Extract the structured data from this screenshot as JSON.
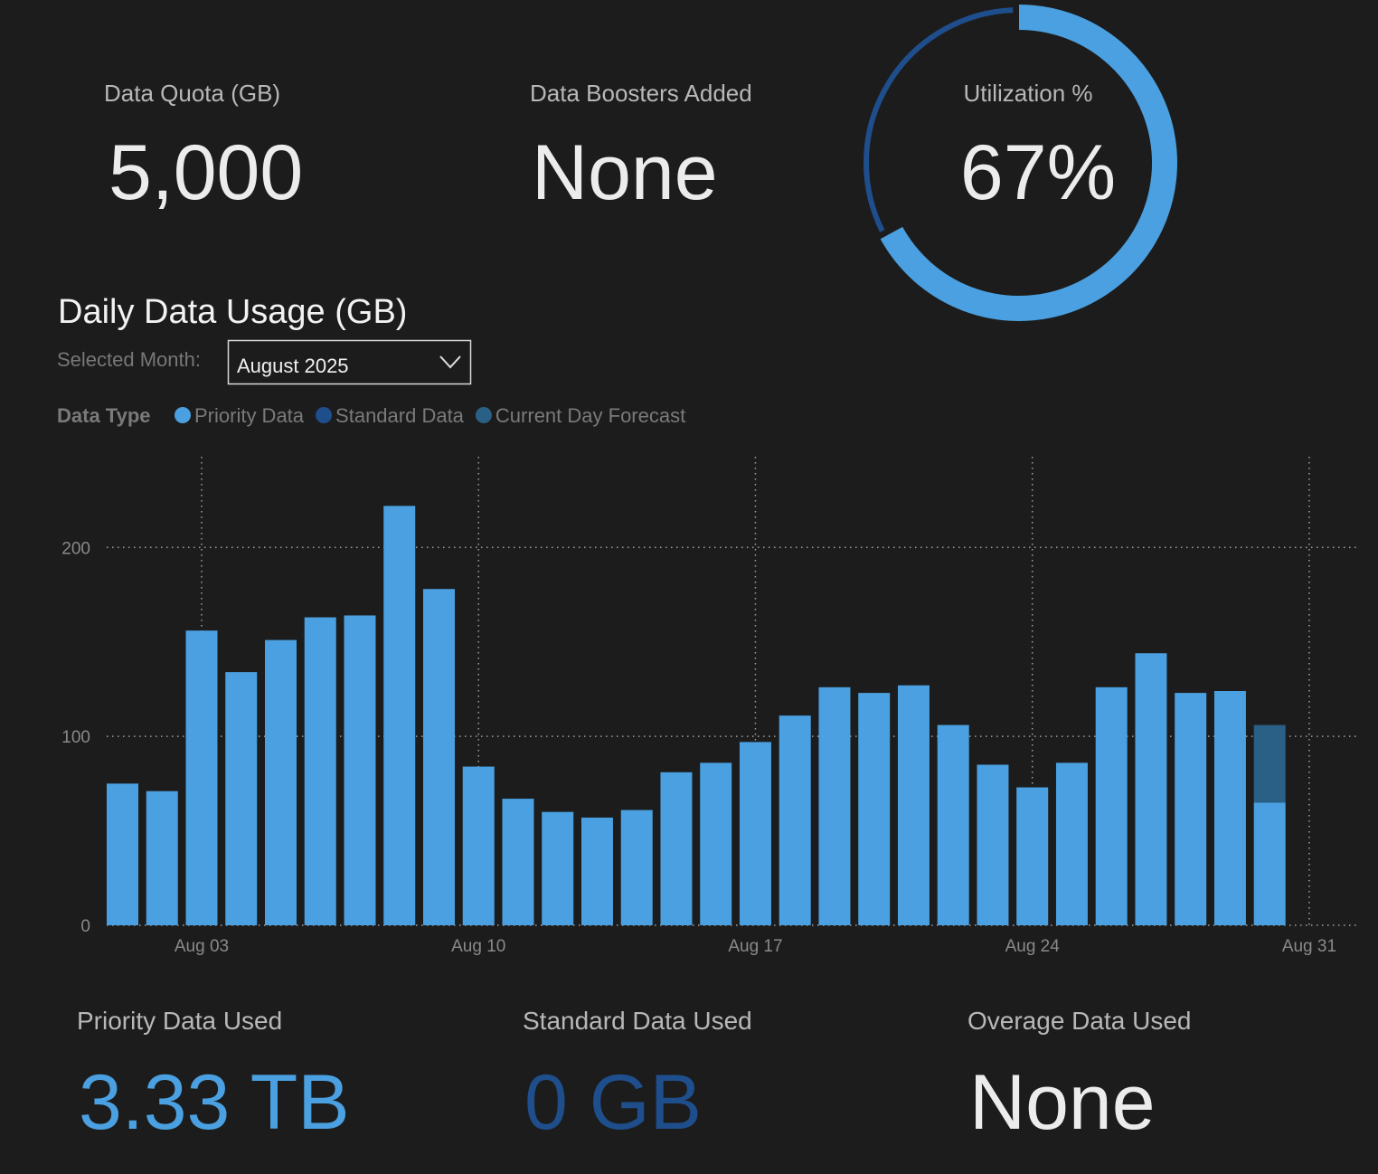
{
  "kpis": [
    {
      "label": "Data Quota (GB)",
      "value": "5,000"
    },
    {
      "label": "Data Boosters Added",
      "value": "None"
    }
  ],
  "utilization": {
    "label": "Utilization %",
    "value": 67,
    "value_label": "67%",
    "color": "#4aa0e0",
    "track_color": "#1f4e8c"
  },
  "chart_data": {
    "type": "bar",
    "title": "Daily Data Usage (GB)",
    "selector_label": "Selected Month:",
    "selector_value": "August 2025",
    "legend_title": "Data Type",
    "stacked": true,
    "grid": true,
    "x": [
      1,
      2,
      3,
      4,
      5,
      6,
      7,
      8,
      9,
      10,
      11,
      12,
      13,
      14,
      15,
      16,
      17,
      18,
      19,
      20,
      21,
      22,
      23,
      24,
      25,
      26,
      27,
      28,
      29,
      30
    ],
    "series": [
      {
        "name": "Priority Data",
        "color": "#4aa0e0",
        "values": [
          75,
          71,
          156,
          134,
          151,
          163,
          164,
          222,
          178,
          84,
          67,
          60,
          57,
          61,
          81,
          86,
          97,
          111,
          126,
          123,
          127,
          106,
          85,
          73,
          86,
          126,
          144,
          123,
          124,
          65
        ]
      },
      {
        "name": "Standard Data",
        "color": "#1f4e8c",
        "values": [
          null,
          null,
          null,
          null,
          null,
          null,
          null,
          null,
          null,
          null,
          null,
          null,
          null,
          null,
          null,
          null,
          null,
          null,
          null,
          null,
          null,
          null,
          null,
          null,
          null,
          null,
          null,
          null,
          null,
          null
        ]
      },
      {
        "name": "Current Day Forecast",
        "color": "#2a5f86",
        "values": [
          null,
          null,
          null,
          null,
          null,
          null,
          null,
          null,
          null,
          null,
          null,
          null,
          null,
          null,
          null,
          null,
          null,
          null,
          null,
          null,
          null,
          null,
          null,
          null,
          null,
          null,
          null,
          null,
          null,
          41
        ]
      }
    ],
    "xlim": [
      0.6,
      32.19
    ],
    "xticks": [
      {
        "value": 3,
        "label": "Aug 03"
      },
      {
        "value": 10,
        "label": "Aug 10"
      },
      {
        "value": 17,
        "label": "Aug 17"
      },
      {
        "value": 24,
        "label": "Aug 24"
      },
      {
        "value": 31,
        "label": "Aug 31"
      }
    ],
    "ylim": [
      0,
      248
    ],
    "yticks": [
      0,
      100,
      200
    ]
  },
  "totals": [
    {
      "label": "Priority Data Used",
      "value": "3.33 TB",
      "color": "#4aa0e0"
    },
    {
      "label": "Standard Data Used",
      "value": "0 GB",
      "color": "#1f4e8c"
    },
    {
      "label": "Overage Data Used",
      "value": "None",
      "color": "#ececec"
    }
  ]
}
